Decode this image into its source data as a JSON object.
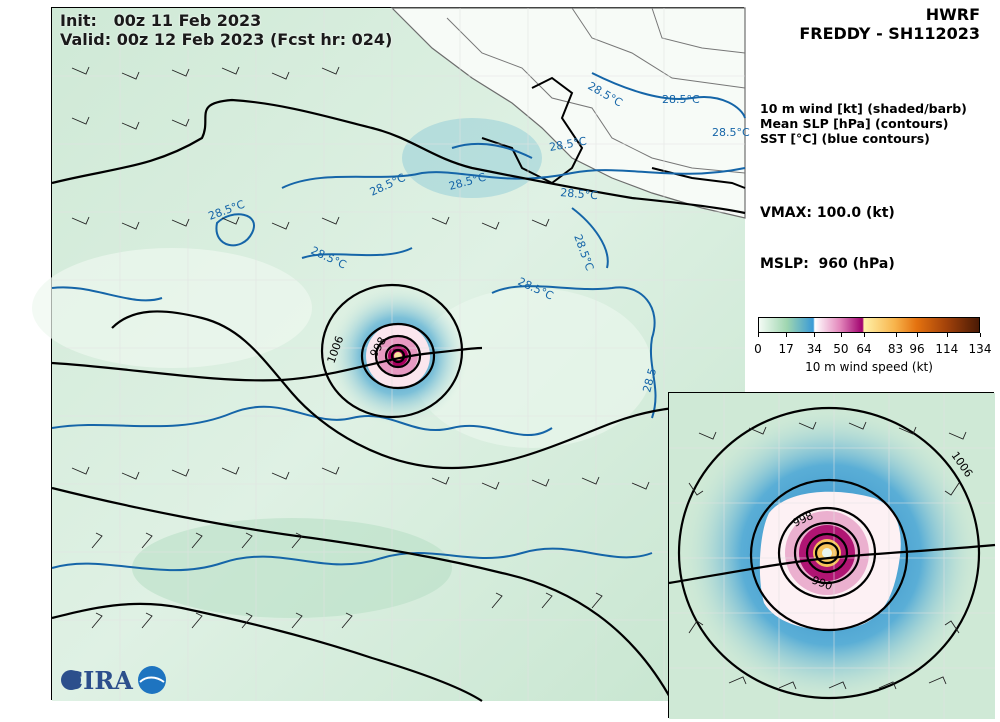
{
  "header": {
    "init_line": "Init:   00z 11 Feb 2023",
    "valid_line": "Valid: 00z 12 Feb 2023 (Fcst hr: 024)",
    "model": "HWRF",
    "storm": "FREDDY - SH112023"
  },
  "legend": {
    "line1": "10 m wind [kt] (shaded/barb)",
    "line2": "Mean SLP [hPa] (contours)",
    "line3": "SST [°C] (blue contours)"
  },
  "stats": {
    "vmax": "VMAX: 100.0 (kt)",
    "mslp": "MSLP:  960 (hPa)"
  },
  "colorbar": {
    "label": "10 m wind speed (kt)",
    "ticks": [
      "0",
      "17",
      "34",
      "50",
      "64",
      "83",
      "96",
      "114",
      "134"
    ],
    "tick_values": [
      0,
      17,
      34,
      50,
      64,
      83,
      96,
      114,
      134
    ],
    "range": [
      0,
      134
    ],
    "stops": [
      {
        "value": 0,
        "color": "#f4fbf5"
      },
      {
        "value": 17,
        "color": "#9fd6b0"
      },
      {
        "value": 33,
        "color": "#3a9ad6"
      },
      {
        "value": 34,
        "color": "#ffffff"
      },
      {
        "value": 49,
        "color": "#e48abd"
      },
      {
        "value": 63,
        "color": "#a0006e"
      },
      {
        "value": 64,
        "color": "#fff1a8"
      },
      {
        "value": 83,
        "color": "#f7b24a"
      },
      {
        "value": 96,
        "color": "#e4720f"
      },
      {
        "value": 114,
        "color": "#a3420a"
      },
      {
        "value": 134,
        "color": "#4a1a05"
      }
    ]
  },
  "contour_labels": {
    "sst": [
      "28.5°C",
      "28.5°C",
      "28.5°C",
      "28.5°C",
      "28.5°C",
      "28.5°C",
      "28.5°C",
      "28.5°C",
      "28.5°C",
      "28.5°C",
      "28.5°C",
      "28.5"
    ],
    "slp_main": [
      "1006",
      "998"
    ],
    "slp_inset": [
      "1006",
      "998",
      "990"
    ]
  },
  "colors": {
    "sst_contour": "#1565a8",
    "slp_contour": "#000000",
    "land": "#fbfdfb",
    "coast": "#6d6d6d"
  },
  "logo": {
    "text": "CIRA"
  }
}
